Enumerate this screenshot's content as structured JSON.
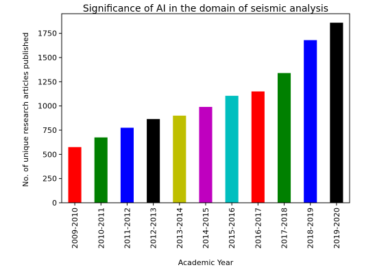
{
  "chart_data": {
    "type": "bar",
    "title": "Significance of AI in the domain of seismic analysis",
    "x_label": "Academic Year",
    "y_label": "No. of unique research articles published",
    "categories": [
      "2009-2010",
      "2010-2011",
      "2011-2012",
      "2012-2013",
      "2013-2014",
      "2014-2015",
      "2015-2016",
      "2016-2017",
      "2017-2018",
      "2018-2019",
      "2019-2020"
    ],
    "values": [
      575,
      675,
      775,
      865,
      900,
      990,
      1105,
      1150,
      1340,
      1680,
      1860
    ],
    "colors": [
      "#ff0000",
      "#008000",
      "#0000ff",
      "#000000",
      "#bfbf00",
      "#bf00bf",
      "#00bfbf",
      "#ff0000",
      "#008000",
      "#0000ff",
      "#000000"
    ],
    "ylim": [
      0,
      1953
    ],
    "yticks": [
      0,
      250,
      500,
      750,
      1000,
      1250,
      1500,
      1750
    ],
    "grid": false
  }
}
